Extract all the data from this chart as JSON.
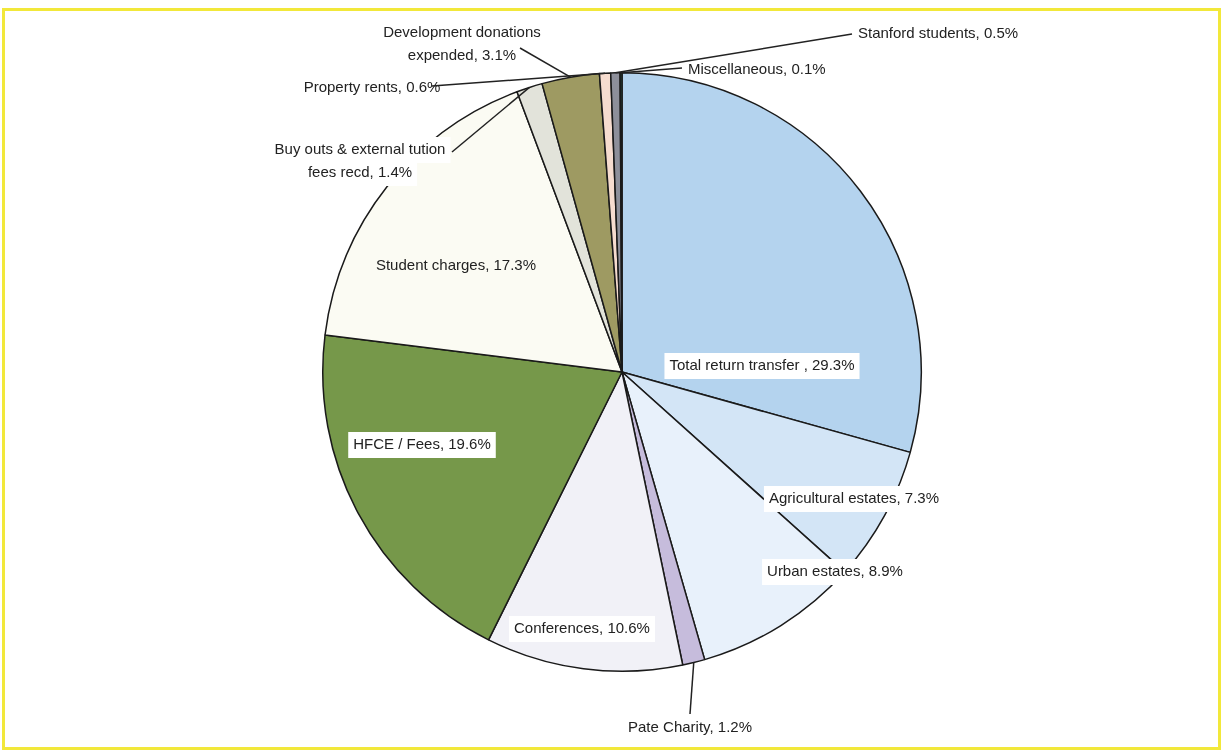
{
  "chart_data": {
    "type": "pie",
    "categories": [
      "Total return transfer",
      "Agricultural estates",
      "Urban estates",
      "Pate Charity",
      "Conferences",
      "HFCE / Fees",
      "Student charges",
      "Buy outs & external tution fees recd",
      "Development donations expended",
      "Property rents",
      "Stanford students",
      "Miscellaneous"
    ],
    "value_labels": [
      " , 29.3%",
      ", 7.3%",
      ", 8.9%",
      ", 1.2%",
      ", 10.6%",
      ", 19.6%",
      ", 17.3%",
      ", 1.4%",
      ", 3.1%",
      ", 0.6%",
      ", 0.5%",
      ", 0.1%"
    ],
    "values": [
      29.3,
      7.3,
      8.9,
      1.2,
      10.6,
      19.6,
      17.3,
      1.4,
      3.1,
      0.6,
      0.5,
      0.1
    ],
    "colors": [
      "#b4d3ee",
      "#d3e5f6",
      "#e8f1fb",
      "#c6bcdc",
      "#f1f1f7",
      "#76984a",
      "#fbfbf3",
      "#e2e3da",
      "#9e9a62",
      "#f6dccf",
      "#8d8f9a",
      "#2f5f4f"
    ],
    "legend": false
  }
}
